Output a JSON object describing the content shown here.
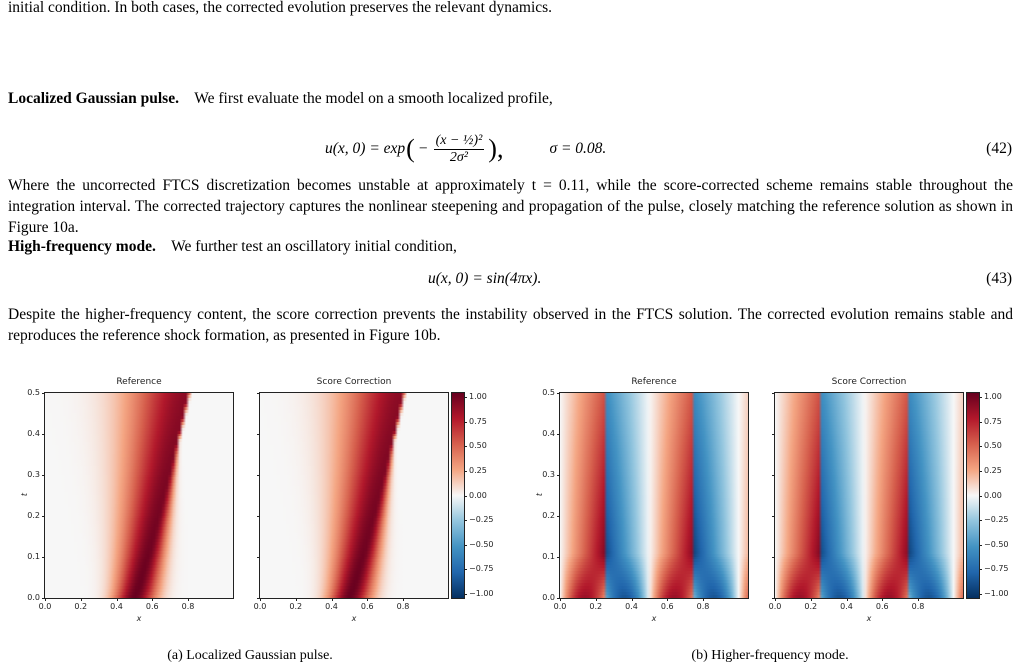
{
  "top_text": "initial condition. In both cases, the corrected evolution preserves the relevant dynamics.",
  "sections": [
    {
      "heading": "Localized Gaussian pulse.",
      "intro": "We first evaluate the model on a smooth localized profile,",
      "equation": {
        "lhs": "u(x, 0) = exp",
        "open": "(",
        "minus": "−",
        "numerator": "(x − ½)²",
        "denominator": "2σ²",
        "close": "),",
        "condition": "σ = 0.08.",
        "number": "(42)"
      },
      "body": "Where the uncorrected FTCS discretization becomes unstable at approximately t = 0.11, while the score-corrected scheme remains stable throughout the integration interval. The corrected trajectory captures the nonlinear steepening and propagation of the pulse, closely matching the reference solution as shown in Figure 10a."
    },
    {
      "heading": "High-frequency mode.",
      "intro": "We further test an oscillatory initial condition,",
      "equation": {
        "lhs": "u(x, 0) = sin(4πx).",
        "number": "(43)"
      },
      "body": "Despite the higher-frequency content, the score correction prevents the instability observed in the FTCS solution. The corrected evolution remains stable and reproduces the reference shock formation, as presented in Figure 10b."
    }
  ],
  "figures": [
    {
      "caption": "(a) Localized Gaussian pulse.",
      "field": "gaussian",
      "panels": [
        {
          "title": "Reference",
          "xlabel": "x",
          "ylabel": "t"
        },
        {
          "title": "Score Correction",
          "xlabel": "x"
        }
      ],
      "xticks": [
        "0.0",
        "0.2",
        "0.4",
        "0.6",
        "0.8"
      ],
      "yticks": [
        "0.0",
        "0.1",
        "0.2",
        "0.3",
        "0.4",
        "0.5"
      ],
      "colorbar_ticks": [
        "1.00",
        "0.75",
        "0.50",
        "0.25",
        "0.00",
        "−0.25",
        "−0.50",
        "−0.75",
        "−1.00"
      ]
    },
    {
      "caption": "(b) Higher-frequency mode.",
      "field": "sine",
      "panels": [
        {
          "title": "Reference",
          "xlabel": "x",
          "ylabel": "t"
        },
        {
          "title": "Score Correction",
          "xlabel": "x"
        }
      ],
      "xticks": [
        "0.0",
        "0.2",
        "0.4",
        "0.6",
        "0.8"
      ],
      "yticks": [
        "0.0",
        "0.1",
        "0.2",
        "0.3",
        "0.4",
        "0.5"
      ],
      "colorbar_ticks": [
        "1.00",
        "0.75",
        "0.50",
        "0.25",
        "0.00",
        "−0.25",
        "−0.50",
        "−0.75",
        "−1.00"
      ]
    }
  ]
}
